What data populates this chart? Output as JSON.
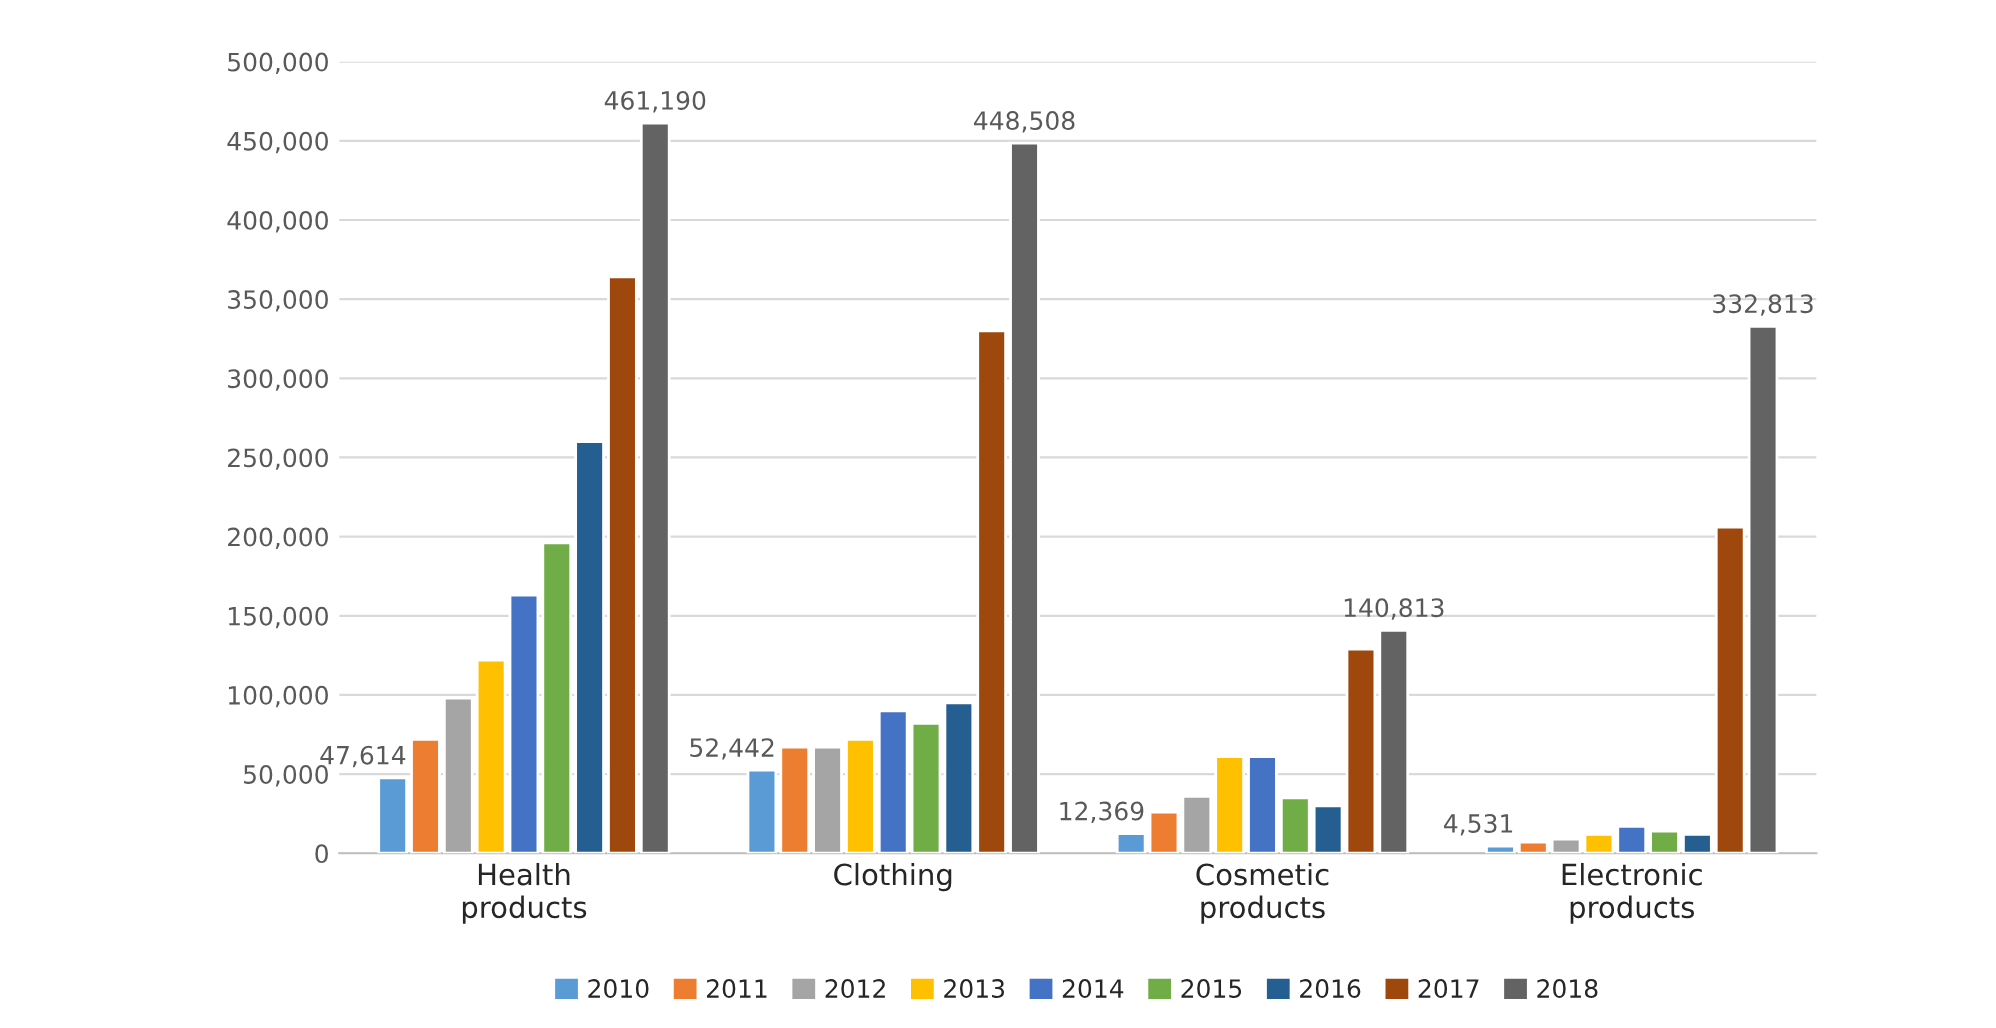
{
  "chart_data": {
    "type": "bar",
    "categories": [
      "Health\nproducts",
      "Clothing",
      "Cosmetic\nproducts",
      "Electronic\nproducts"
    ],
    "series": [
      {
        "name": "2010",
        "color": "#5b9bd5",
        "values": [
          47614,
          52442,
          12369,
          4531
        ],
        "value_labels": [
          "47,614",
          "52,442",
          "12,369",
          "4,531"
        ]
      },
      {
        "name": "2011",
        "color": "#ed7d31",
        "values": [
          72000,
          67000,
          26000,
          7000
        ]
      },
      {
        "name": "2012",
        "color": "#a5a5a5",
        "values": [
          98000,
          67000,
          36000,
          9000
        ]
      },
      {
        "name": "2013",
        "color": "#ffc000",
        "values": [
          122000,
          72000,
          61000,
          12000
        ]
      },
      {
        "name": "2014",
        "color": "#4472c4",
        "values": [
          163000,
          90000,
          61000,
          17000
        ]
      },
      {
        "name": "2015",
        "color": "#70ad47",
        "values": [
          196000,
          82000,
          35000,
          14000
        ]
      },
      {
        "name": "2016",
        "color": "#255e91",
        "values": [
          260000,
          95000,
          30000,
          12000
        ]
      },
      {
        "name": "2017",
        "color": "#9e480e",
        "values": [
          364000,
          330000,
          129000,
          206000
        ]
      },
      {
        "name": "2018",
        "color": "#636363",
        "values": [
          461190,
          448508,
          140813,
          332813
        ],
        "value_labels": [
          "461,190",
          "448,508",
          "140,813",
          "332,813"
        ]
      }
    ],
    "ylim": [
      0,
      500000
    ],
    "yticks": [
      {
        "value": 0,
        "label": "0"
      },
      {
        "value": 50000,
        "label": "50,000"
      },
      {
        "value": 100000,
        "label": "100,000"
      },
      {
        "value": 150000,
        "label": "150,000"
      },
      {
        "value": 200000,
        "label": "200,000"
      },
      {
        "value": 250000,
        "label": "250,000"
      },
      {
        "value": 300000,
        "label": "300,000"
      },
      {
        "value": 350000,
        "label": "350,000"
      },
      {
        "value": 400000,
        "label": "400,000"
      },
      {
        "value": 450000,
        "label": "450,000"
      },
      {
        "value": 500000,
        "label": "500,000"
      }
    ],
    "grid": "y",
    "legend": "bottom"
  }
}
